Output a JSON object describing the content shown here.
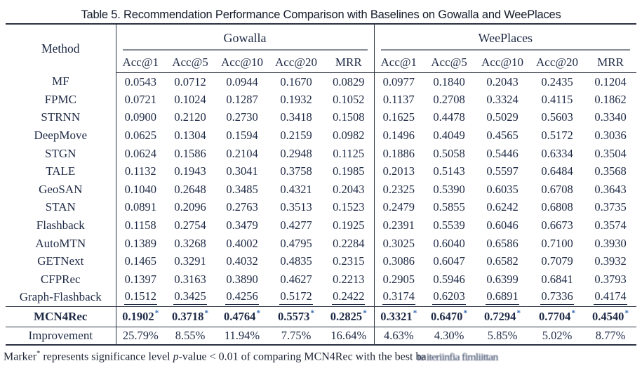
{
  "caption": "Table 5.  Recommendation Performance Comparison with Baselines on Gowalla and WeePlaces",
  "header": {
    "method_label": "Method",
    "groups": [
      {
        "label": "Gowalla"
      },
      {
        "label": "WeePlaces"
      }
    ],
    "metrics": [
      "Acc@1",
      "Acc@5",
      "Acc@10",
      "Acc@20",
      "MRR"
    ]
  },
  "marker_symbol": "*",
  "colors": {
    "text": "#1e2a45",
    "rule": "#2b3242",
    "cmidrule": "#868c98",
    "asterisk_blue": "#3a6fb5"
  },
  "rows": [
    {
      "method": "MF",
      "style": "normal",
      "gowalla": [
        "0.0543",
        "0.0712",
        "0.0944",
        "0.1670",
        "0.0829"
      ],
      "weeplaces": [
        "0.0977",
        "0.1840",
        "0.2043",
        "0.2435",
        "0.1204"
      ]
    },
    {
      "method": "FPMC",
      "style": "normal",
      "gowalla": [
        "0.0721",
        "0.1024",
        "0.1287",
        "0.1932",
        "0.1052"
      ],
      "weeplaces": [
        "0.1137",
        "0.2708",
        "0.3324",
        "0.4115",
        "0.1862"
      ]
    },
    {
      "method": "STRNN",
      "style": "normal",
      "gowalla": [
        "0.0900",
        "0.2120",
        "0.2730",
        "0.3418",
        "0.1508"
      ],
      "weeplaces": [
        "0.1625",
        "0.4478",
        "0.5029",
        "0.5603",
        "0.3340"
      ]
    },
    {
      "method": "DeepMove",
      "style": "normal",
      "gowalla": [
        "0.0625",
        "0.1304",
        "0.1594",
        "0.2159",
        "0.0982"
      ],
      "weeplaces": [
        "0.1496",
        "0.4049",
        "0.4565",
        "0.5172",
        "0.3036"
      ]
    },
    {
      "method": "STGN",
      "style": "normal",
      "gowalla": [
        "0.0624",
        "0.1586",
        "0.2104",
        "0.2948",
        "0.1125"
      ],
      "weeplaces": [
        "0.1886",
        "0.5058",
        "0.5446",
        "0.6334",
        "0.3504"
      ]
    },
    {
      "method": "TALE",
      "style": "normal",
      "gowalla": [
        "0.1132",
        "0.1943",
        "0.3041",
        "0.3758",
        "0.1985"
      ],
      "weeplaces": [
        "0.2013",
        "0.5143",
        "0.5597",
        "0.6484",
        "0.3568"
      ]
    },
    {
      "method": "GeoSAN",
      "style": "normal",
      "gowalla": [
        "0.1040",
        "0.2648",
        "0.3485",
        "0.4321",
        "0.2043"
      ],
      "weeplaces": [
        "0.2325",
        "0.5390",
        "0.6035",
        "0.6708",
        "0.3643"
      ]
    },
    {
      "method": "STAN",
      "style": "normal",
      "gowalla": [
        "0.0891",
        "0.2096",
        "0.2763",
        "0.3513",
        "0.1523"
      ],
      "weeplaces": [
        "0.2479",
        "0.5855",
        "0.6242",
        "0.6808",
        "0.3735"
      ]
    },
    {
      "method": "Flashback",
      "style": "normal",
      "gowalla": [
        "0.1158",
        "0.2754",
        "0.3479",
        "0.4277",
        "0.1925"
      ],
      "weeplaces": [
        "0.2391",
        "0.5539",
        "0.6046",
        "0.6673",
        "0.3574"
      ]
    },
    {
      "method": "AutoMTN",
      "style": "normal",
      "gowalla": [
        "0.1389",
        "0.3268",
        "0.4002",
        "0.4795",
        "0.2284"
      ],
      "weeplaces": [
        "0.3025",
        "0.6040",
        "0.6586",
        "0.7100",
        "0.3930"
      ]
    },
    {
      "method": "GETNext",
      "style": "normal",
      "gowalla": [
        "0.1465",
        "0.3291",
        "0.4032",
        "0.4835",
        "0.2315"
      ],
      "weeplaces": [
        "0.3086",
        "0.6047",
        "0.6582",
        "0.7079",
        "0.3932"
      ]
    },
    {
      "method": "CFPRec",
      "style": "normal",
      "gowalla": [
        "0.1397",
        "0.3163",
        "0.3890",
        "0.4627",
        "0.2213"
      ],
      "weeplaces": [
        "0.2905",
        "0.5946",
        "0.6399",
        "0.6841",
        "0.3793"
      ]
    },
    {
      "method": "Graph-Flashback",
      "style": "underline",
      "gowalla": [
        "0.1512",
        "0.3425",
        "0.4256",
        "0.5172",
        "0.2422"
      ],
      "weeplaces": [
        "0.3174",
        "0.6203",
        "0.6891",
        "0.7336",
        "0.4174"
      ]
    },
    {
      "method": "MCN4Rec",
      "style": "best",
      "gowalla": [
        "0.1902",
        "0.3718",
        "0.4764",
        "0.5573",
        "0.2825"
      ],
      "weeplaces": [
        "0.3321",
        "0.6470",
        "0.7294",
        "0.7704",
        "0.4540"
      ]
    },
    {
      "method": "Improvement",
      "style": "improvement",
      "gowalla": [
        "25.79%",
        "8.55%",
        "11.94%",
        "7.75%",
        "16.64%"
      ],
      "weeplaces": [
        "4.63%",
        "4.30%",
        "5.85%",
        "5.02%",
        "8.77%"
      ]
    }
  ],
  "note": {
    "prefix": "Marker",
    "star": "*",
    "mid": " represents significance level ",
    "p_italic": "p",
    "tail": "-value < 0.01 of comparing MCN4Rec with the best ba",
    "obscured": "te iteriinfia fimliittan"
  }
}
